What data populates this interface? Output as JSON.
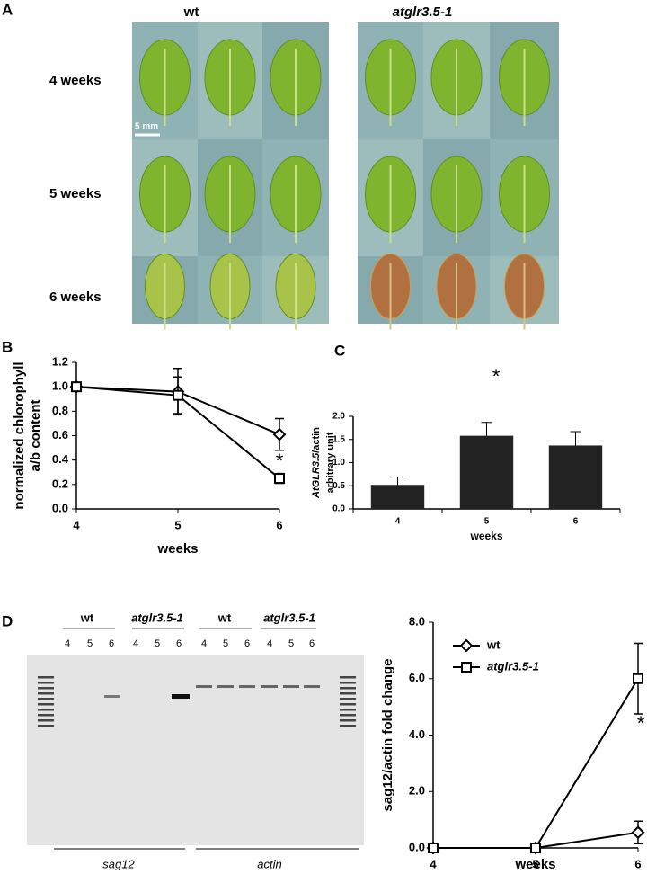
{
  "panel_labels": [
    "A",
    "B",
    "C",
    "D"
  ],
  "panel_a": {
    "columns": [
      "wt",
      "atglr3.5-1"
    ],
    "rows": [
      "4 weeks",
      "5 weeks",
      "6 weeks"
    ],
    "scale_bar": "5 mm"
  },
  "gel": {
    "groups": [
      "wt",
      "atglr3.5-1",
      "wt",
      "atglr3.5-1"
    ],
    "lanes": [
      "4",
      "5",
      "6"
    ],
    "genes": [
      "sag12",
      "actin"
    ]
  },
  "chart_data": [
    {
      "type": "line",
      "ylabel": [
        "normalized chlorophyll",
        "a/b content"
      ],
      "xlabel": "weeks",
      "x": [
        4,
        5,
        6
      ],
      "xlim": [
        4,
        6
      ],
      "xticks": [
        4,
        5,
        6
      ],
      "ylim": [
        0,
        1.2
      ],
      "yticks": [
        {
          "value": 0,
          "label": "0.0"
        },
        0.2,
        0.4,
        0.6,
        0.8,
        {
          "value": 1,
          "label": "1.0"
        },
        1.2
      ],
      "series": [
        {
          "color": "#000000",
          "marker": "diamond",
          "values": [
            1.0,
            0.96,
            0.61
          ],
          "errors": [
            0,
            0.19,
            0.13
          ]
        },
        {
          "color": "#000000",
          "marker": "square",
          "values": [
            1.0,
            0.93,
            0.25
          ],
          "errors": [
            0,
            0.15,
            0.04
          ]
        }
      ],
      "annotations": [
        "*"
      ]
    },
    {
      "type": "bar",
      "ylabel": [
        "AtGLR3.5",
        "/actin",
        "arbitrary unit"
      ],
      "xlabel": "weeks",
      "categories": [
        "4",
        "5",
        "6"
      ],
      "values": [
        0.52,
        1.58,
        1.37
      ],
      "errors": [
        0.17,
        0.29,
        0.3
      ],
      "color": "#222222",
      "ylim": [
        0,
        2
      ],
      "yticks": [
        {
          "value": 0,
          "label": "0.0"
        },
        0.5,
        {
          "value": 1,
          "label": "1.0"
        },
        1.5,
        {
          "value": 2,
          "label": "2.0"
        }
      ],
      "annotations": [
        "*"
      ]
    },
    {
      "type": "line",
      "ylabel": [
        "sag12/actin fold change"
      ],
      "xlabel": "weeks",
      "x": [
        4,
        5,
        6
      ],
      "xlim": [
        4,
        6
      ],
      "xticks": [
        4,
        5,
        6
      ],
      "ylim": [
        0,
        8
      ],
      "yticks": [
        {
          "value": 0,
          "label": "0.0"
        },
        {
          "value": 2,
          "label": "2.0"
        },
        {
          "value": 4,
          "label": "4.0"
        },
        {
          "value": 6,
          "label": "6.0"
        },
        {
          "value": 8,
          "label": "8.0"
        }
      ],
      "legend": "upper left",
      "series": [
        {
          "name": "wt",
          "color": "#000000",
          "marker": "diamond",
          "values": [
            0,
            0,
            0.55
          ],
          "errors": [
            0,
            0,
            0.4
          ]
        },
        {
          "name": "atglr3.5-1",
          "color": "#000000",
          "marker": "square",
          "values": [
            0,
            0,
            6.0
          ],
          "errors": [
            0,
            0,
            1.25
          ]
        }
      ],
      "annotations": [
        "*"
      ]
    }
  ]
}
